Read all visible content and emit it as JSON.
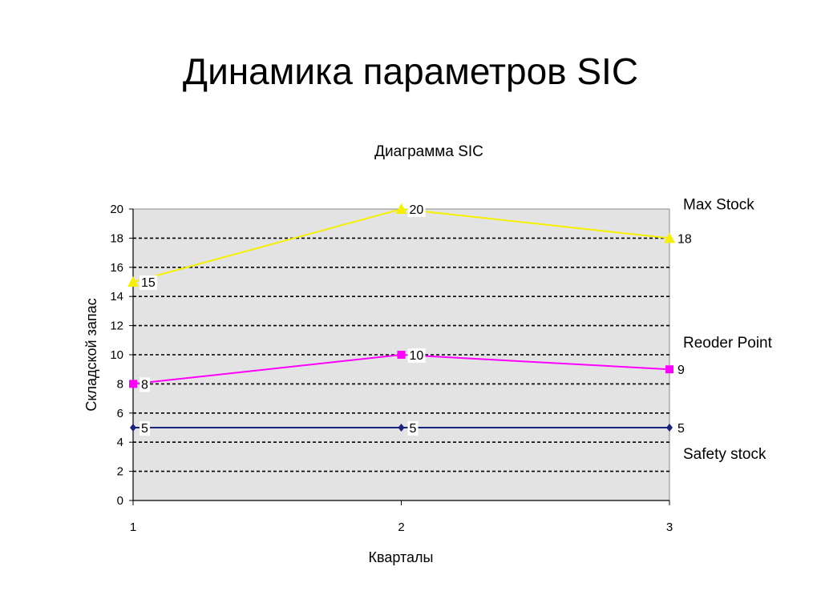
{
  "slide": {
    "title": "Динамика параметров SIC"
  },
  "chart_data": {
    "type": "line",
    "title": "Диаграмма SIC",
    "xlabel": "Кварталы",
    "ylabel": "Складской запас",
    "categories": [
      "1",
      "2",
      "3"
    ],
    "ylim": [
      0,
      20
    ],
    "yticks": [
      0,
      2,
      4,
      6,
      8,
      10,
      12,
      14,
      16,
      18,
      20
    ],
    "grid": true,
    "plot_background": "#e3e3e3",
    "series": [
      {
        "name": "Max Stock",
        "values": [
          15,
          20,
          18
        ],
        "color": "#f5f000",
        "marker": "triangle"
      },
      {
        "name": "Reoder Point",
        "values": [
          8,
          10,
          9
        ],
        "color": "#ff00ff",
        "marker": "square"
      },
      {
        "name": "Safety stock",
        "values": [
          5,
          5,
          5
        ],
        "color": "#1a237e",
        "marker": "diamond"
      }
    ]
  }
}
